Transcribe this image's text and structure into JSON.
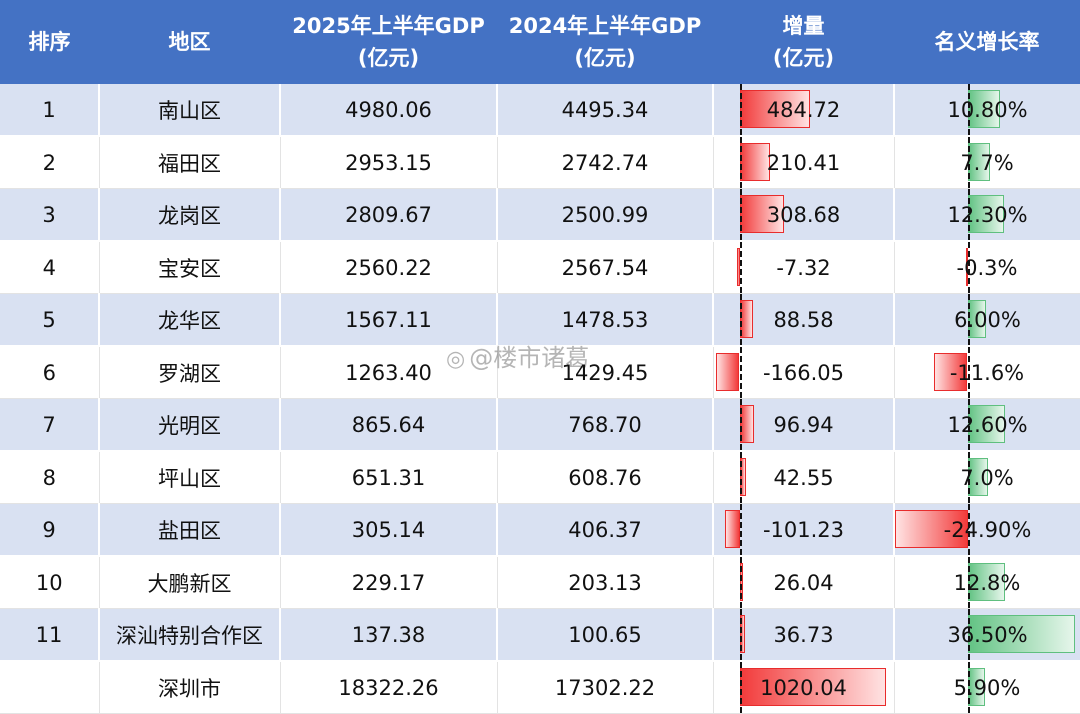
{
  "headers": {
    "rank": "排序",
    "region": "地区",
    "gdp2025": [
      "2025年上半年GDP",
      "(亿元)"
    ],
    "gdp2024": [
      "2024年上半年GDP",
      "(亿元)"
    ],
    "increase": [
      "增量",
      "(亿元)"
    ],
    "growth": "名义增长率"
  },
  "rows": [
    {
      "rank": "1",
      "region": "南山区",
      "gdp2025": "4980.06",
      "gdp2024": "4495.34",
      "increase": "484.72",
      "increase_num": 484.72,
      "growth": "10.80%",
      "growth_num": 10.8
    },
    {
      "rank": "2",
      "region": "福田区",
      "gdp2025": "2953.15",
      "gdp2024": "2742.74",
      "increase": "210.41",
      "increase_num": 210.41,
      "growth": "7.7%",
      "growth_num": 7.7
    },
    {
      "rank": "3",
      "region": "龙岗区",
      "gdp2025": "2809.67",
      "gdp2024": "2500.99",
      "increase": "308.68",
      "increase_num": 308.68,
      "growth": "12.30%",
      "growth_num": 12.3
    },
    {
      "rank": "4",
      "region": "宝安区",
      "gdp2025": "2560.22",
      "gdp2024": "2567.54",
      "increase": "-7.32",
      "increase_num": -7.32,
      "growth": "-0.3%",
      "growth_num": -0.3
    },
    {
      "rank": "5",
      "region": "龙华区",
      "gdp2025": "1567.11",
      "gdp2024": "1478.53",
      "increase": "88.58",
      "increase_num": 88.58,
      "growth": "6.00%",
      "growth_num": 6.0
    },
    {
      "rank": "6",
      "region": "罗湖区",
      "gdp2025": "1263.40",
      "gdp2024": "1429.45",
      "increase": "-166.05",
      "increase_num": -166.05,
      "growth": "-11.6%",
      "growth_num": -11.6
    },
    {
      "rank": "7",
      "region": "光明区",
      "gdp2025": "865.64",
      "gdp2024": "768.70",
      "increase": "96.94",
      "increase_num": 96.94,
      "growth": "12.60%",
      "growth_num": 12.6
    },
    {
      "rank": "8",
      "region": "坪山区",
      "gdp2025": "651.31",
      "gdp2024": "608.76",
      "increase": "42.55",
      "increase_num": 42.55,
      "growth": "7.0%",
      "growth_num": 7.0
    },
    {
      "rank": "9",
      "region": "盐田区",
      "gdp2025": "305.14",
      "gdp2024": "406.37",
      "increase": "-101.23",
      "increase_num": -101.23,
      "growth": "-24.90%",
      "growth_num": -24.9
    },
    {
      "rank": "10",
      "region": "大鹏新区",
      "gdp2025": "229.17",
      "gdp2024": "203.13",
      "increase": "26.04",
      "increase_num": 26.04,
      "growth": "12.8%",
      "growth_num": 12.8
    },
    {
      "rank": "11",
      "region": "深汕特别合作区",
      "gdp2025": "137.38",
      "gdp2024": "100.65",
      "increase": "36.73",
      "increase_num": 36.73,
      "growth": "36.50%",
      "growth_num": 36.5
    },
    {
      "rank": "",
      "region": "深圳市",
      "gdp2025": "18322.26",
      "gdp2024": "17302.22",
      "increase": "1020.04",
      "increase_num": 1020.04,
      "growth": "5.90%",
      "growth_num": 5.9
    }
  ],
  "colors": {
    "header_bg": "#4472c4",
    "band_bg": "#d9e1f2",
    "increase_bar": "#f23b3b",
    "growth_pos_bar": "#63c384",
    "growth_neg_bar": "#f23b3b"
  },
  "watermark": "@楼市诸葛"
}
